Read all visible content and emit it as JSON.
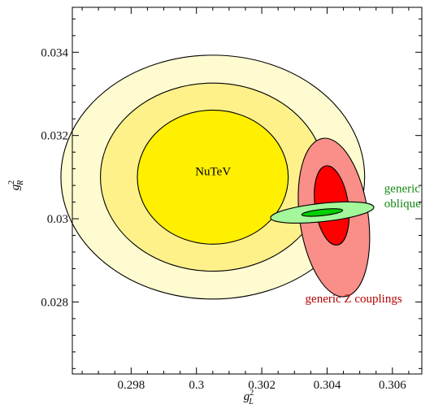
{
  "chart_data": {
    "type": "scatter",
    "xlabel": "g",
    "xlabel_super": "2",
    "xlabel_sub": "L",
    "ylabel": "g",
    "ylabel_super": "2",
    "ylabel_sub": "R",
    "xlim": [
      0.2962,
      0.3069
    ],
    "ylim": [
      0.02627,
      0.03508
    ],
    "x_ticks": [
      {
        "value": 0.298,
        "label": "0.298"
      },
      {
        "value": 0.3,
        "label": "0.3"
      },
      {
        "value": 0.302,
        "label": "0.302"
      },
      {
        "value": 0.304,
        "label": "0.304"
      },
      {
        "value": 0.306,
        "label": "0.306"
      }
    ],
    "y_ticks": [
      {
        "value": 0.028,
        "label": "0.028"
      },
      {
        "value": 0.03,
        "label": "0.03"
      },
      {
        "value": 0.032,
        "label": "0.032"
      },
      {
        "value": 0.034,
        "label": "0.034"
      }
    ],
    "grid": false,
    "regions": [
      {
        "name": "nutev-outer",
        "cx": 0.3005,
        "cy": 0.031,
        "rx": 0.00465,
        "ry": 0.00293,
        "angle": 0,
        "fill": "#fffbd0"
      },
      {
        "name": "nutev-middle",
        "cx": 0.3005,
        "cy": 0.031,
        "rx": 0.00344,
        "ry": 0.00226,
        "angle": 0,
        "fill": "#fff18a"
      },
      {
        "name": "nutev-inner",
        "cx": 0.3005,
        "cy": 0.031,
        "rx": 0.00231,
        "ry": 0.00161,
        "angle": 0,
        "fill": "#ffef00"
      },
      {
        "name": "generic-z-outer",
        "cx": 0.30421,
        "cy": 0.03003,
        "rx": 0.00105,
        "ry": 0.00192,
        "angle": -8,
        "fill": "#f98f88"
      },
      {
        "name": "generic-z-inner",
        "cx": 0.30414,
        "cy": 0.03032,
        "rx": 0.00051,
        "ry": 0.00096,
        "angle": -8,
        "fill": "#ff0000"
      },
      {
        "name": "oblique-outer",
        "cx": 0.30385,
        "cy": 0.03015,
        "rx": 0.00159,
        "ry": 0.00022,
        "angle": -6,
        "fill": "#a4f79a"
      },
      {
        "name": "oblique-inner",
        "cx": 0.30385,
        "cy": 0.03015,
        "rx": 0.00063,
        "ry": 7.5e-05,
        "angle": -6,
        "fill": "#00d000"
      }
    ],
    "annotations": [
      {
        "text": "NuTeV",
        "x": 0.30051,
        "y": 0.03105,
        "color": "#000000",
        "anchor": "middle"
      },
      {
        "text": "generic",
        "x": 0.30575,
        "y": 0.03064,
        "color": "#118811",
        "anchor": "start"
      },
      {
        "text": "oblique",
        "x": 0.30575,
        "y": 0.03027,
        "color": "#118811",
        "anchor": "start"
      },
      {
        "text": "generic Z couplings",
        "x": 0.30333,
        "y": 0.02799,
        "color": "#b30000",
        "anchor": "start"
      }
    ]
  }
}
